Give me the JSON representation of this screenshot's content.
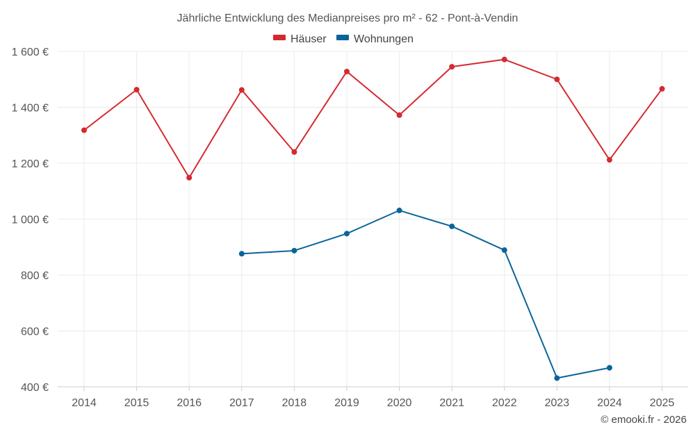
{
  "chart_data": {
    "type": "line",
    "title": "Jährliche Entwicklung des Medianpreises pro m² - 62 - Pont-à-Vendin",
    "xlabel": "",
    "ylabel": "",
    "categories": [
      "2014",
      "2015",
      "2016",
      "2017",
      "2018",
      "2019",
      "2020",
      "2021",
      "2022",
      "2023",
      "2024",
      "2025"
    ],
    "ylim": [
      400,
      1600
    ],
    "yticks": [
      400,
      600,
      800,
      1000,
      1200,
      1400,
      1600
    ],
    "ytick_labels": [
      "400 €",
      "600 €",
      "800 €",
      "1 000 €",
      "1 200 €",
      "1 400 €",
      "1 600 €"
    ],
    "grid": true,
    "legend_position": "top-center",
    "series": [
      {
        "name": "Häuser",
        "color": "#d42a2f",
        "values": [
          1318,
          1463,
          1148,
          1462,
          1240,
          1528,
          1372,
          1545,
          1571,
          1500,
          1212,
          1466
        ]
      },
      {
        "name": "Wohnungen",
        "color": "#0a6499",
        "values": [
          null,
          null,
          null,
          876,
          887,
          948,
          1031,
          974,
          889,
          431,
          468,
          null
        ]
      }
    ]
  },
  "credit": "© emooki.fr - 2026"
}
